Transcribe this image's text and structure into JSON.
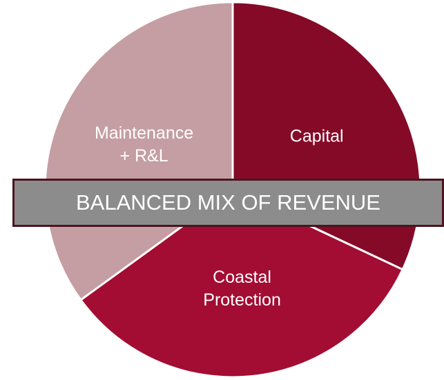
{
  "chart_data": {
    "type": "pie",
    "title": "BALANCED MIX OF REVENUE",
    "categories": [
      "Capital",
      "Coastal Protection",
      "Maintenance + R&L"
    ],
    "values": [
      32,
      33,
      35
    ],
    "colors": [
      "#850a28",
      "#a30d33",
      "#c49ea2"
    ]
  }
}
